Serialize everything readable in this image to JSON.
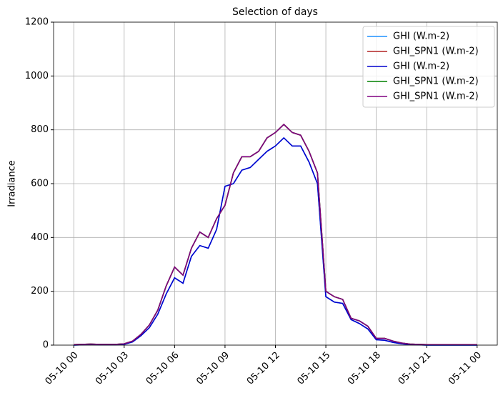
{
  "chart_data": {
    "type": "line",
    "title": "Selection of days",
    "ylabel": "Irradiance",
    "x": [
      0,
      0.5,
      1,
      1.5,
      2,
      2.5,
      3,
      3.5,
      4,
      4.5,
      5,
      5.5,
      6,
      6.5,
      7,
      7.5,
      8,
      8.5,
      9,
      9.5,
      10,
      10.5,
      11,
      11.5,
      12,
      12.5,
      13,
      13.5,
      14,
      14.5,
      15,
      15.5,
      16,
      16.5,
      17,
      17.5,
      18,
      18.5,
      19,
      19.5,
      20,
      20.5,
      21,
      21.5,
      22,
      22.5,
      23,
      23.5,
      24
    ],
    "xlim": [
      -1.2,
      25.2
    ],
    "xticks": [
      {
        "value": 0,
        "label": "05-10 00"
      },
      {
        "value": 3,
        "label": "05-10 03"
      },
      {
        "value": 6,
        "label": "05-10 06"
      },
      {
        "value": 9,
        "label": "05-10 09"
      },
      {
        "value": 12,
        "label": "05-10 12"
      },
      {
        "value": 15,
        "label": "05-10 15"
      },
      {
        "value": 18,
        "label": "05-10 18"
      },
      {
        "value": 21,
        "label": "05-10 21"
      },
      {
        "value": 24,
        "label": "05-11 00"
      }
    ],
    "ylim": [
      0,
      1200
    ],
    "yticks": [
      0,
      200,
      400,
      600,
      800,
      1000,
      1200
    ],
    "grid": true,
    "legend": "upper right",
    "series": [
      {
        "name": "GHI (W.m-2)",
        "color": "#1e90ff",
        "values": [
          0,
          1,
          2,
          1,
          1,
          1,
          3,
          12,
          35,
          65,
          115,
          190,
          250,
          230,
          330,
          370,
          360,
          430,
          590,
          600,
          650,
          660,
          690,
          720,
          740,
          770,
          740,
          740,
          680,
          600,
          180,
          160,
          155,
          95,
          80,
          60,
          20,
          18,
          10,
          5,
          2,
          1,
          0,
          0,
          0,
          0,
          0,
          0,
          0
        ]
      },
      {
        "name": "GHI_SPN1 (W.m-2)",
        "color": "#b22222",
        "values": [
          2,
          3,
          4,
          3,
          3,
          3,
          5,
          15,
          40,
          75,
          130,
          220,
          290,
          260,
          360,
          420,
          400,
          470,
          520,
          640,
          700,
          700,
          720,
          770,
          790,
          820,
          790,
          780,
          720,
          640,
          200,
          180,
          170,
          100,
          90,
          70,
          25,
          25,
          15,
          8,
          4,
          3,
          2,
          2,
          2,
          2,
          2,
          2,
          2
        ]
      },
      {
        "name": "GHI (W.m-2)",
        "color": "#0000cd",
        "values": [
          0,
          1,
          2,
          1,
          1,
          1,
          3,
          12,
          35,
          65,
          115,
          190,
          250,
          230,
          330,
          370,
          360,
          430,
          590,
          600,
          650,
          660,
          690,
          720,
          740,
          770,
          740,
          740,
          680,
          600,
          180,
          160,
          155,
          95,
          80,
          60,
          20,
          18,
          10,
          5,
          2,
          1,
          0,
          0,
          0,
          0,
          0,
          0,
          0
        ]
      },
      {
        "name": "GHI_SPN1 (W.m-2)",
        "color": "#008000",
        "values": [
          2,
          3,
          4,
          3,
          3,
          3,
          5,
          15,
          40,
          75,
          130,
          220,
          290,
          260,
          360,
          420,
          400,
          470,
          520,
          640,
          700,
          700,
          720,
          770,
          790,
          820,
          790,
          780,
          720,
          640,
          200,
          180,
          170,
          100,
          90,
          70,
          25,
          25,
          15,
          8,
          4,
          3,
          2,
          2,
          2,
          2,
          2,
          2,
          2
        ]
      },
      {
        "name": "GHI_SPN1 (W.m-2)",
        "color": "#800080",
        "values": [
          2,
          3,
          4,
          3,
          3,
          3,
          5,
          15,
          40,
          75,
          130,
          220,
          290,
          260,
          360,
          420,
          400,
          470,
          520,
          640,
          700,
          700,
          720,
          770,
          790,
          820,
          790,
          780,
          720,
          640,
          200,
          180,
          170,
          100,
          90,
          70,
          25,
          25,
          15,
          8,
          4,
          3,
          2,
          2,
          2,
          2,
          2,
          2,
          2
        ]
      }
    ]
  }
}
